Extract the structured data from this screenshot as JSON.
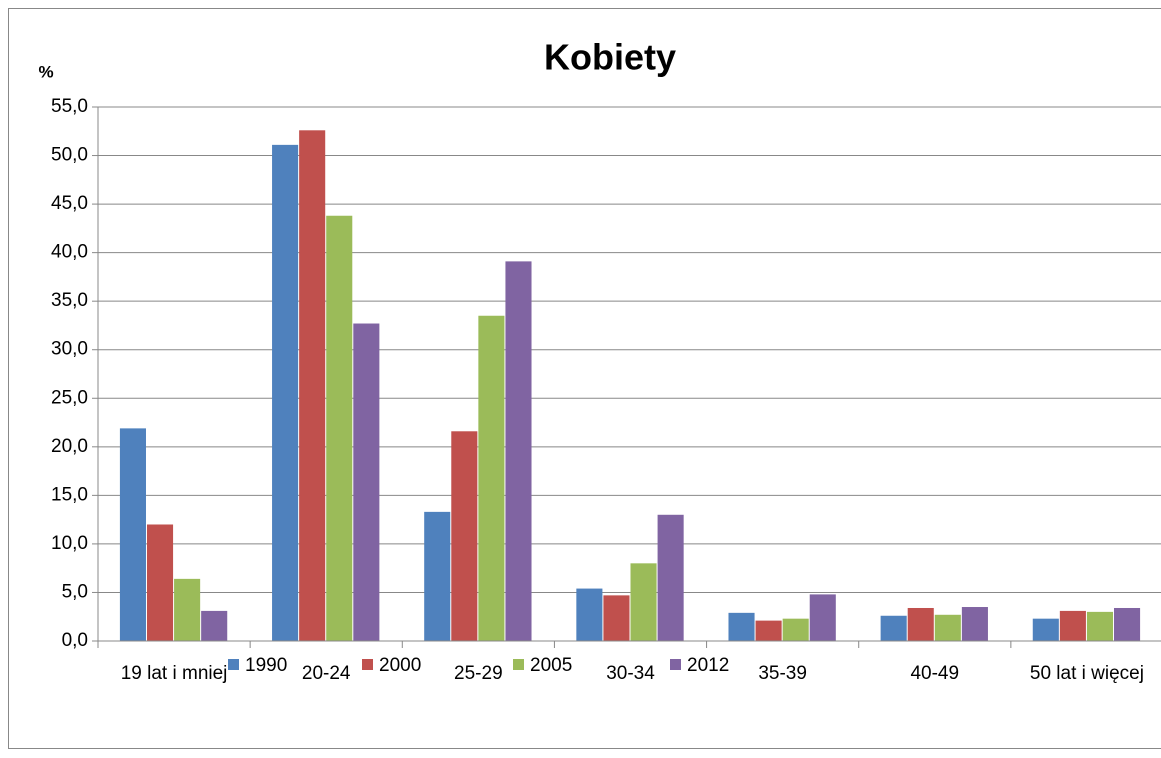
{
  "chart_data": {
    "type": "bar",
    "title": "Kobiety",
    "y_label": "%",
    "categories": [
      "19 lat i mniej",
      "20-24",
      "25-29",
      "30-34",
      "35-39",
      "40-49",
      "50 lat i więcej"
    ],
    "series": [
      {
        "name": "1990",
        "color": "#4f81bd",
        "values": [
          21.9,
          51.1,
          13.3,
          5.4,
          2.9,
          2.6,
          2.3
        ]
      },
      {
        "name": "2000",
        "color": "#c0504d",
        "values": [
          12.0,
          52.6,
          21.6,
          4.7,
          2.1,
          3.4,
          3.1
        ]
      },
      {
        "name": "2005",
        "color": "#9bbb59",
        "values": [
          6.4,
          43.8,
          33.5,
          8.0,
          2.3,
          2.7,
          3.0
        ]
      },
      {
        "name": "2012",
        "color": "#8064a2",
        "values": [
          3.1,
          32.7,
          39.1,
          13.0,
          4.8,
          3.5,
          3.4
        ]
      }
    ],
    "ylim": [
      0,
      55
    ],
    "yticks": [
      {
        "value": 0,
        "label": "0,0"
      },
      {
        "value": 5,
        "label": "5,0"
      },
      {
        "value": 10,
        "label": "10,0"
      },
      {
        "value": 15,
        "label": "15,0"
      },
      {
        "value": 20,
        "label": "20,0"
      },
      {
        "value": 25,
        "label": "25,0"
      },
      {
        "value": 30,
        "label": "30,0"
      },
      {
        "value": 35,
        "label": "35,0"
      },
      {
        "value": 40,
        "label": "40,0"
      },
      {
        "value": 45,
        "label": "45,0"
      },
      {
        "value": 50,
        "label": "50,0"
      },
      {
        "value": 55,
        "label": "55,0"
      }
    ],
    "grid": true,
    "legend": "bottom"
  }
}
